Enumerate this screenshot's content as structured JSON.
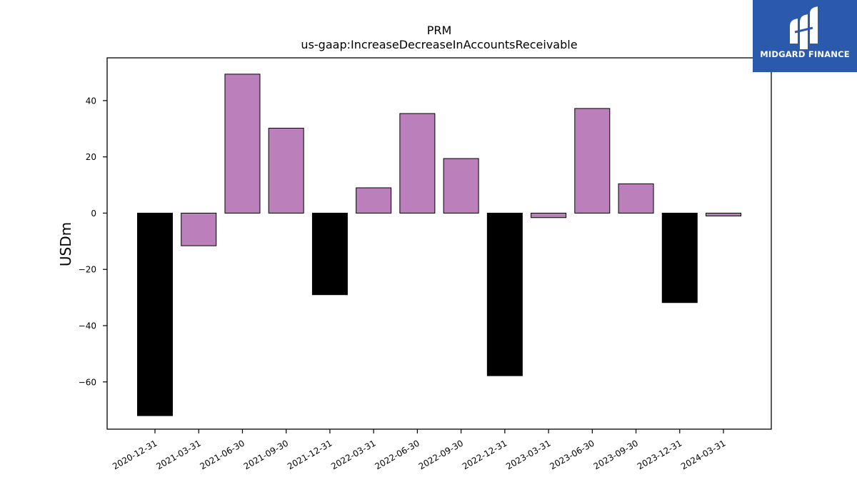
{
  "chart_data": {
    "type": "bar",
    "title": "PRM",
    "subtitle": "us-gaap:IncreaseDecreaseInAccountsReceivable",
    "xlabel": "",
    "ylabel": "USDm",
    "ylim": [
      -76.8,
      55.2
    ],
    "yticks": [
      -60,
      -40,
      -20,
      0,
      20,
      40
    ],
    "ytick_labels": [
      "−60",
      "−40",
      "−20",
      "0",
      "20",
      "40"
    ],
    "grid": false,
    "categories": [
      "2020-12-31",
      "2021-03-31",
      "2021-06-30",
      "2021-09-30",
      "2021-12-31",
      "2022-03-31",
      "2022-06-30",
      "2022-09-30",
      "2022-12-31",
      "2023-03-31",
      "2023-06-30",
      "2023-09-30",
      "2023-12-31",
      "2024-03-31"
    ],
    "values": [
      -72,
      -11.6,
      49.4,
      30.2,
      -29,
      9,
      35.4,
      19.4,
      -57.8,
      -1.6,
      37.2,
      10.4,
      -31.8,
      -1.0
    ],
    "bar_colors": [
      "#000000",
      "#bb80bb",
      "#bb80bb",
      "#bb80bb",
      "#000000",
      "#bb80bb",
      "#bb80bb",
      "#bb80bb",
      "#000000",
      "#bb80bb",
      "#bb80bb",
      "#bb80bb",
      "#000000",
      "#bb80bb"
    ],
    "bar_edge_color": "#000000"
  },
  "logo": {
    "text": "MIDGARD FINANCE",
    "background": "#2b5aad",
    "icon": "midgard-logo-mark"
  }
}
